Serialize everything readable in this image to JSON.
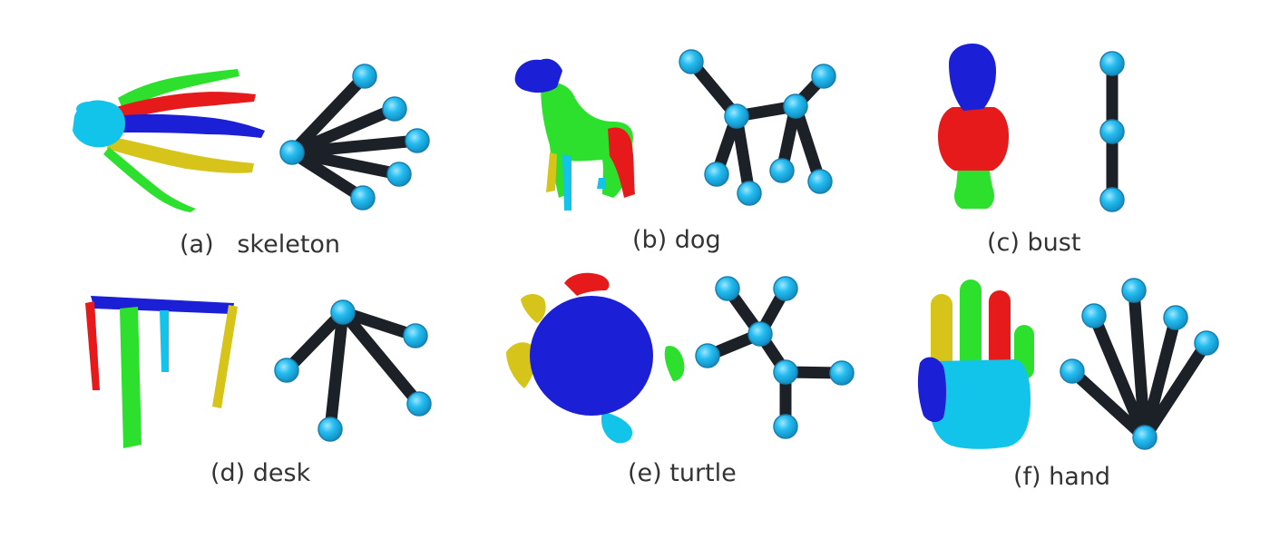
{
  "figure": {
    "panels": [
      {
        "id": "a",
        "caption": "(a)   skeleton"
      },
      {
        "id": "b",
        "caption": "(b) dog"
      },
      {
        "id": "c",
        "caption": "(c) bust"
      },
      {
        "id": "d",
        "caption": "(d) desk"
      },
      {
        "id": "e",
        "caption": "(e) turtle"
      },
      {
        "id": "f",
        "caption": "(f) hand"
      }
    ]
  },
  "colors": {
    "blue": "#1b1fd6",
    "green": "#2ee02e",
    "red": "#e61a1a",
    "yellow": "#d6c41a",
    "cyan": "#12c3ea",
    "edge": "#1c2128",
    "node": "#25bdf0"
  }
}
